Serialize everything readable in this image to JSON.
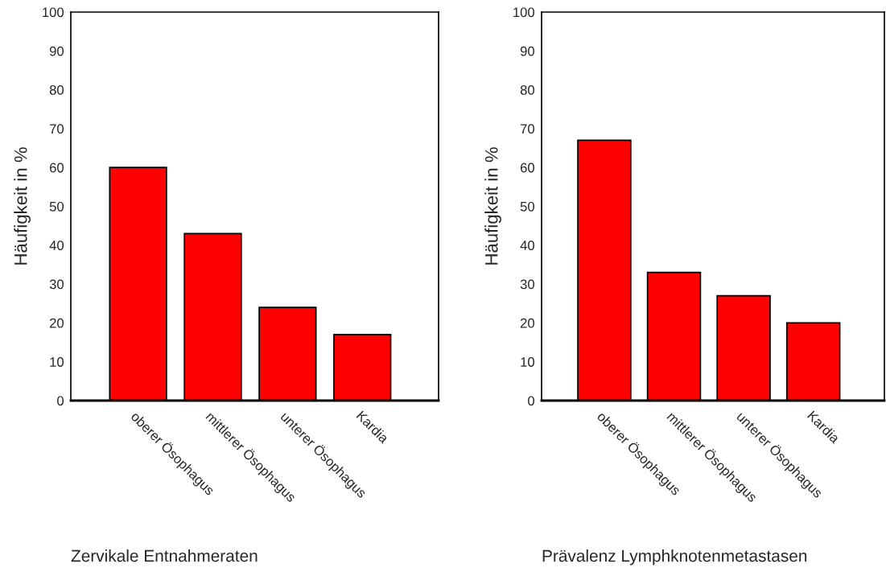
{
  "chart_data": [
    {
      "type": "bar",
      "xlabel": "Zervikale Entnahmeraten",
      "ylabel": "Häufigkeit in %",
      "categories": [
        "oberer Ösophagus",
        "mittlerer Ösophagus",
        "unterer Ösophagus",
        "Kardia"
      ],
      "values": [
        60,
        43,
        24,
        17
      ],
      "color": "#ff0000",
      "ylim": [
        0,
        100
      ],
      "yticks": [
        0,
        10,
        20,
        30,
        40,
        50,
        60,
        70,
        80,
        90,
        100
      ],
      "grid": false
    },
    {
      "type": "bar",
      "xlabel": "Prävalenz Lymphknotenmetastasen",
      "ylabel": "Häufigkeit in %",
      "categories": [
        "oberer Ösophagus",
        "mittlerer Ösophagus",
        "unterer Ösophagus",
        "Kardia"
      ],
      "values": [
        67,
        33,
        27,
        20
      ],
      "color": "#ff0000",
      "ylim": [
        0,
        100
      ],
      "yticks": [
        0,
        10,
        20,
        30,
        40,
        50,
        60,
        70,
        80,
        90,
        100
      ],
      "grid": false
    }
  ]
}
